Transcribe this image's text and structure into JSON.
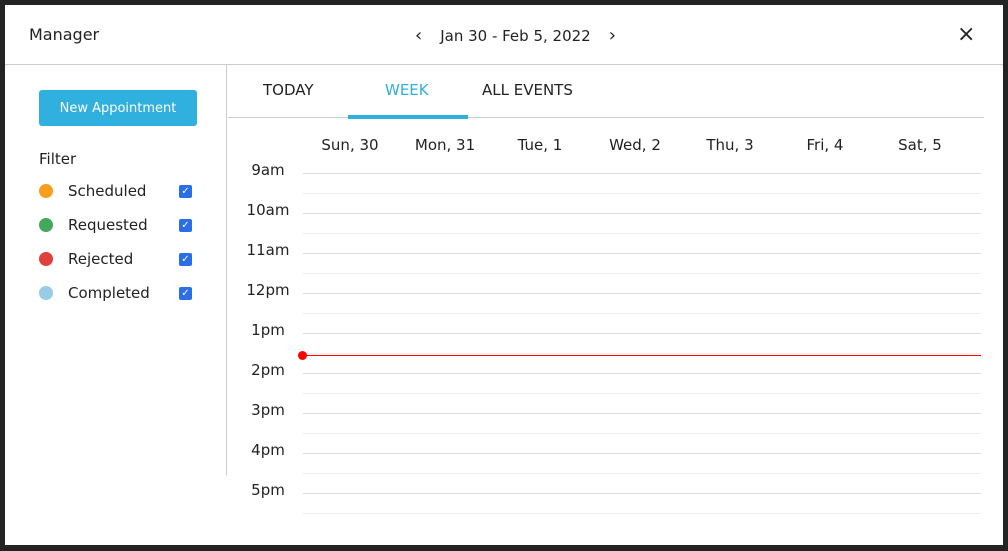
{
  "header": {
    "title": "Manager",
    "date_range": "Jan 30 - Feb 5, 2022"
  },
  "sidebar": {
    "new_button": "New Appointment",
    "filter_label": "Filter",
    "filters": [
      {
        "label": "Scheduled",
        "color": "#f99d1c",
        "checked": true
      },
      {
        "label": "Requested",
        "color": "#43a85c",
        "checked": true
      },
      {
        "label": "Rejected",
        "color": "#e0413a",
        "checked": true
      },
      {
        "label": "Completed",
        "color": "#97cbe6",
        "checked": true
      }
    ]
  },
  "tabs": [
    {
      "label": "TODAY"
    },
    {
      "label": "WEEK",
      "active": true
    },
    {
      "label": "ALL EVENTS"
    }
  ],
  "days": [
    "Sun, 30",
    "Mon, 31",
    "Tue, 1",
    "Wed, 2",
    "Thu, 3",
    "Fri, 4",
    "Sat, 5"
  ],
  "hours": [
    "9am",
    "10am",
    "11am",
    "12pm",
    "1pm",
    "2pm",
    "3pm",
    "4pm",
    "5pm"
  ],
  "accent": "#2fb0de",
  "now_color": "#ff0000"
}
